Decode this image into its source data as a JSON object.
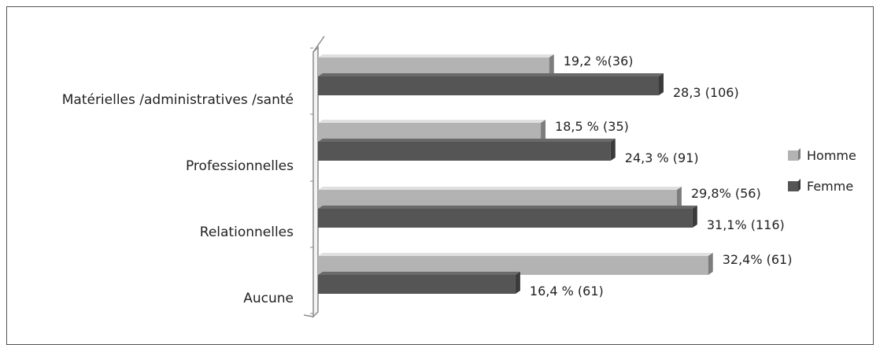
{
  "chart_data": {
    "type": "bar",
    "orientation": "horizontal",
    "categories": [
      "Matérielles /administratives /santé",
      "Professionnelles",
      "Relationnelles",
      "Aucune"
    ],
    "series": [
      {
        "name": "Homme",
        "color": "#b3b3b3",
        "values": [
          19.2,
          18.5,
          29.8,
          32.4
        ],
        "labels": [
          "19,2 %(36)",
          "18,5 % (35)",
          "29,8% (56)",
          "32,4%  (61)"
        ]
      },
      {
        "name": "Femme",
        "color": "#555555",
        "values": [
          28.3,
          24.3,
          31.1,
          16.4
        ],
        "labels": [
          "28,3 (106)",
          "24,3 % (91)",
          "31,1% (116)",
          "16,4 % (61)"
        ]
      }
    ],
    "legend_position": "right",
    "grid": false
  }
}
